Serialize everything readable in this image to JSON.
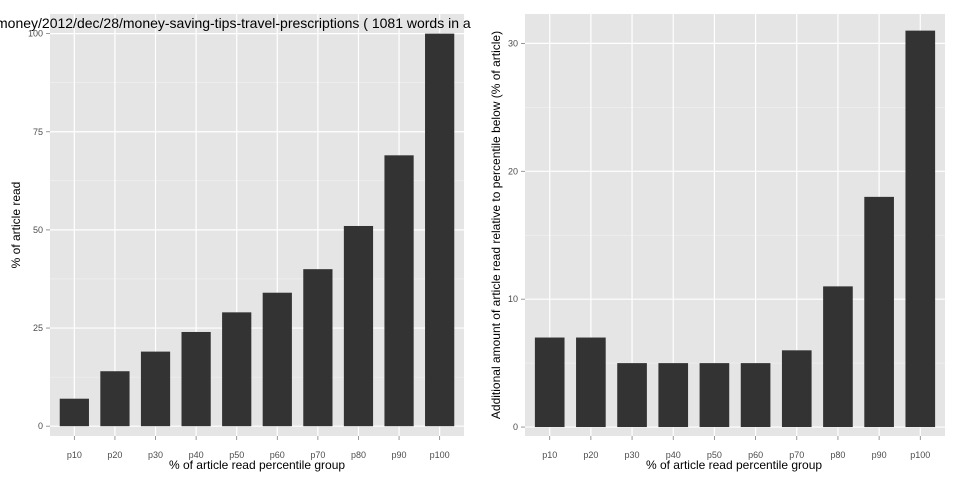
{
  "chart_data": [
    {
      "type": "bar",
      "title": "money/2012/dec/28/money-saving-tips-travel-prescriptions ( 1081 words in a",
      "xlabel": "% of article read percentile group",
      "ylabel": "% of article read",
      "categories": [
        "p10",
        "p20",
        "p30",
        "p40",
        "p50",
        "p60",
        "p70",
        "p80",
        "p90",
        "p100"
      ],
      "values": [
        7,
        14,
        19,
        24,
        29,
        34,
        40,
        51,
        69,
        100
      ],
      "ylim": [
        -2.5,
        105
      ],
      "yticks": [
        0,
        25,
        50,
        75,
        100
      ],
      "grid": true,
      "bar_color": "#333333",
      "panel_color": "#e5e5e5"
    },
    {
      "type": "bar",
      "title": "",
      "xlabel": "% of article read percentile group",
      "ylabel": "Additional amount of article read relative to percentile below (% of article)",
      "categories": [
        "p10",
        "p20",
        "p30",
        "p40",
        "p50",
        "p60",
        "p70",
        "p80",
        "p90",
        "p100"
      ],
      "values": [
        7,
        7,
        5,
        5,
        5,
        5,
        6,
        11,
        18,
        31
      ],
      "ylim": [
        -0.7,
        32.3
      ],
      "yticks": [
        0,
        10,
        20,
        30
      ],
      "grid": true,
      "bar_color": "#333333",
      "panel_color": "#e5e5e5"
    }
  ]
}
